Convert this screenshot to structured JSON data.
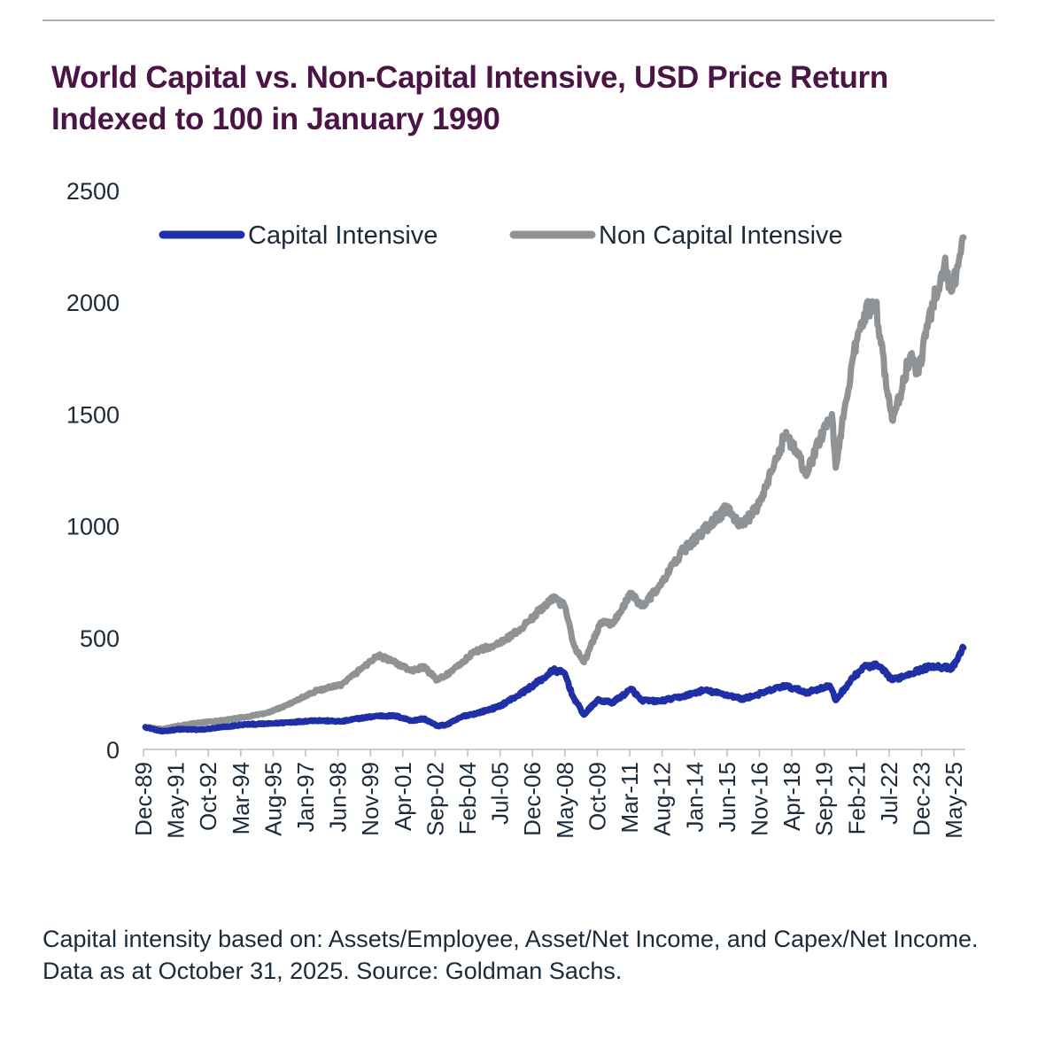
{
  "title": "World Capital vs. Non-Capital Intensive, USD Price Return Indexed to 100 in January 1990",
  "footnote": "Capital intensity based on: Assets/Employee, Asset/Net Income, and Capex/Net Income. Data as at October 31, 2025. Source: Goldman Sachs.",
  "chart_data": {
    "type": "line",
    "title": "World Capital vs. Non-Capital Intensive, USD Price Return Indexed to 100 in January 1990",
    "xlabel": "",
    "ylabel": "",
    "ylim": [
      0,
      2500
    ],
    "yticks": [
      0,
      500,
      1000,
      1500,
      2000,
      2500
    ],
    "xlim": [
      1989.917,
      2025.833
    ],
    "xticks": [
      "Dec-89",
      "May-91",
      "Oct-92",
      "Mar-94",
      "Aug-95",
      "Jan-97",
      "Jun-98",
      "Nov-99",
      "Apr-01",
      "Sep-02",
      "Feb-04",
      "Jul-05",
      "Dec-06",
      "May-08",
      "Oct-09",
      "Mar-11",
      "Aug-12",
      "Jan-14",
      "Jun-15",
      "Nov-16",
      "Apr-18",
      "Sep-19",
      "Feb-21",
      "Jul-22",
      "Dec-23",
      "May-25"
    ],
    "grid": false,
    "legend": "top",
    "colors": {
      "capital": "#1f2fa5",
      "non_capital": "#8f9396"
    },
    "series": [
      {
        "name": "Capital Intensive",
        "color": "#1f2fa5",
        "points": [
          [
            "1990-01",
            100
          ],
          [
            "1990-10",
            80
          ],
          [
            "1991-06",
            90
          ],
          [
            "1992-06",
            88
          ],
          [
            "1993-06",
            100
          ],
          [
            "1994-06",
            112
          ],
          [
            "1995-06",
            115
          ],
          [
            "1996-06",
            122
          ],
          [
            "1997-06",
            130
          ],
          [
            "1998-08",
            125
          ],
          [
            "1999-06",
            140
          ],
          [
            "2000-03",
            150
          ],
          [
            "2000-12",
            150
          ],
          [
            "2001-09",
            128
          ],
          [
            "2002-03",
            138
          ],
          [
            "2002-10",
            105
          ],
          [
            "2003-03",
            110
          ],
          [
            "2003-12",
            150
          ],
          [
            "2004-06",
            160
          ],
          [
            "2005-06",
            190
          ],
          [
            "2006-06",
            250
          ],
          [
            "2007-06",
            320
          ],
          [
            "2007-11",
            355
          ],
          [
            "2008-05",
            340
          ],
          [
            "2008-09",
            240
          ],
          [
            "2009-03",
            155
          ],
          [
            "2009-10",
            220
          ],
          [
            "2010-06",
            210
          ],
          [
            "2011-04",
            270
          ],
          [
            "2011-09",
            220
          ],
          [
            "2012-06",
            215
          ],
          [
            "2013-06",
            235
          ],
          [
            "2014-06",
            265
          ],
          [
            "2015-08",
            240
          ],
          [
            "2016-02",
            225
          ],
          [
            "2016-10",
            245
          ],
          [
            "2017-12",
            285
          ],
          [
            "2018-12",
            255
          ],
          [
            "2019-12",
            285
          ],
          [
            "2020-03",
            220
          ],
          [
            "2020-12",
            320
          ],
          [
            "2021-06",
            370
          ],
          [
            "2022-01",
            375
          ],
          [
            "2022-09",
            310
          ],
          [
            "2023-06",
            340
          ],
          [
            "2024-06",
            375
          ],
          [
            "2025-04",
            360
          ],
          [
            "2025-10",
            455
          ]
        ]
      },
      {
        "name": "Non Capital Intensive",
        "color": "#8f9396",
        "points": [
          [
            "1990-01",
            100
          ],
          [
            "1990-10",
            90
          ],
          [
            "1991-06",
            105
          ],
          [
            "1992-06",
            120
          ],
          [
            "1993-06",
            130
          ],
          [
            "1994-06",
            145
          ],
          [
            "1995-06",
            165
          ],
          [
            "1996-06",
            210
          ],
          [
            "1997-06",
            260
          ],
          [
            "1998-08",
            290
          ],
          [
            "1999-06",
            360
          ],
          [
            "2000-03",
            420
          ],
          [
            "2000-09",
            400
          ],
          [
            "2001-09",
            350
          ],
          [
            "2002-03",
            370
          ],
          [
            "2002-10",
            310
          ],
          [
            "2003-06",
            350
          ],
          [
            "2004-06",
            440
          ],
          [
            "2005-06",
            470
          ],
          [
            "2006-06",
            540
          ],
          [
            "2007-06",
            640
          ],
          [
            "2007-10",
            680
          ],
          [
            "2008-05",
            640
          ],
          [
            "2008-10",
            460
          ],
          [
            "2009-03",
            390
          ],
          [
            "2009-12",
            570
          ],
          [
            "2010-06",
            560
          ],
          [
            "2011-04",
            700
          ],
          [
            "2011-09",
            640
          ],
          [
            "2012-06",
            720
          ],
          [
            "2013-06",
            880
          ],
          [
            "2014-06",
            980
          ],
          [
            "2015-06",
            1080
          ],
          [
            "2016-02",
            1000
          ],
          [
            "2016-10",
            1080
          ],
          [
            "2017-06",
            1250
          ],
          [
            "2018-01",
            1420
          ],
          [
            "2018-06",
            1330
          ],
          [
            "2018-12",
            1230
          ],
          [
            "2019-06",
            1380
          ],
          [
            "2020-01",
            1500
          ],
          [
            "2020-03",
            1260
          ],
          [
            "2020-12",
            1750
          ],
          [
            "2021-06",
            1950
          ],
          [
            "2021-12",
            2000
          ],
          [
            "2022-06",
            1600
          ],
          [
            "2022-09",
            1470
          ],
          [
            "2023-06",
            1760
          ],
          [
            "2023-10",
            1680
          ],
          [
            "2024-06",
            2000
          ],
          [
            "2024-12",
            2170
          ],
          [
            "2025-04",
            2050
          ],
          [
            "2025-10",
            2290
          ]
        ]
      }
    ]
  }
}
